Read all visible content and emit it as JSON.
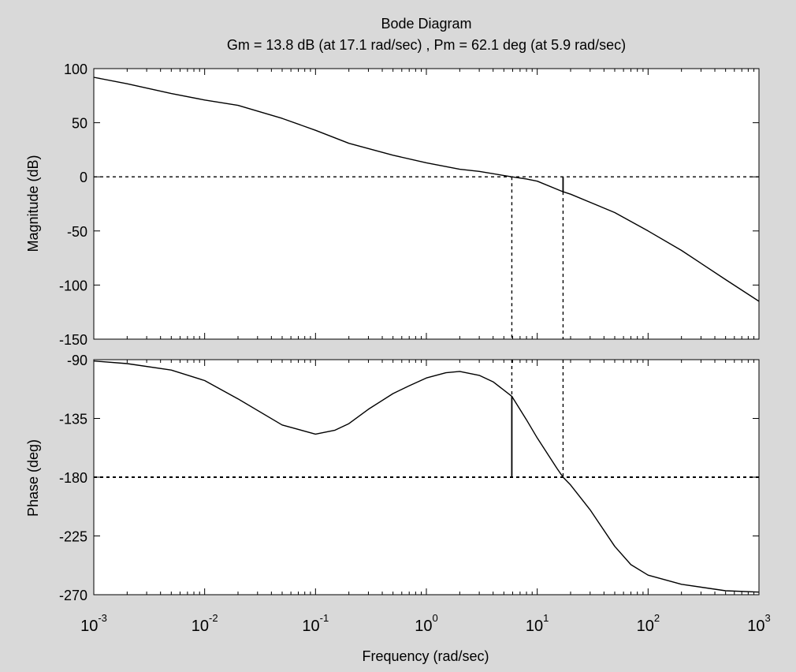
{
  "figure": {
    "background": "#d9d9d9",
    "axes_background": "#ffffff",
    "line_color": "#000000"
  },
  "chart_data": {
    "type": "line",
    "title": "Bode Diagram",
    "subtitle": "Gm = 13.8 dB (at 17.1 rad/sec) ,  Pm = 62.1 deg (at 5.9 rad/sec)",
    "xlabel": "Frequency  (rad/sec)",
    "xscale": "log",
    "xlim": [
      0.001,
      1000
    ],
    "x_tick_labels": [
      {
        "value": 0.001,
        "base": "10",
        "exp": "-3"
      },
      {
        "value": 0.01,
        "base": "10",
        "exp": "-2"
      },
      {
        "value": 0.1,
        "base": "10",
        "exp": "-1"
      },
      {
        "value": 1,
        "base": "10",
        "exp": "0"
      },
      {
        "value": 10,
        "base": "10",
        "exp": "1"
      },
      {
        "value": 100,
        "base": "10",
        "exp": "2"
      },
      {
        "value": 1000,
        "base": "10",
        "exp": "3"
      }
    ],
    "grid": false,
    "gain_margin": {
      "value_db": 13.8,
      "frequency": 17.1
    },
    "phase_margin": {
      "value_deg": 62.1,
      "frequency": 5.9
    },
    "magnitude": {
      "ylabel": "Magnitude (dB)",
      "ylim": [
        -150,
        100
      ],
      "yticks": [
        "100",
        "50",
        "0",
        "-50",
        "-100",
        "-150"
      ],
      "ytick_values": [
        100,
        50,
        0,
        -50,
        -100,
        -150
      ],
      "reference_line": 0,
      "series": [
        {
          "x": [
            0.001,
            0.002,
            0.005,
            0.01,
            0.02,
            0.05,
            0.1,
            0.2,
            0.5,
            1,
            2,
            3,
            5.9,
            8,
            10,
            17.1,
            20,
            50,
            100,
            200,
            500,
            1000
          ],
          "y": [
            92,
            86,
            77,
            71,
            66,
            54,
            43,
            31,
            20,
            13,
            7,
            5,
            0,
            -2,
            -4,
            -13.8,
            -16,
            -33,
            -50,
            -68,
            -95,
            -115
          ]
        }
      ]
    },
    "phase": {
      "ylabel": "Phase (deg)",
      "ylim": [
        -270,
        -90
      ],
      "yticks": [
        "-90",
        "-135",
        "-180",
        "-225",
        "-270"
      ],
      "ytick_values": [
        -90,
        -135,
        -180,
        -225,
        -270
      ],
      "reference_line": -180,
      "series": [
        {
          "x": [
            0.001,
            0.002,
            0.005,
            0.01,
            0.02,
            0.05,
            0.1,
            0.15,
            0.2,
            0.3,
            0.5,
            0.7,
            1,
            1.5,
            2,
            3,
            4,
            5.9,
            8,
            10,
            15,
            17.1,
            20,
            30,
            50,
            70,
            100,
            200,
            500,
            1000
          ],
          "y": [
            -91,
            -93,
            -98,
            -106,
            -120,
            -140,
            -147,
            -144,
            -139,
            -128,
            -116,
            -110,
            -104,
            -100,
            -99,
            -102,
            -107,
            -118,
            -136,
            -150,
            -173,
            -180,
            -186,
            -205,
            -233,
            -247,
            -255,
            -262,
            -267,
            -268
          ]
        }
      ]
    }
  }
}
